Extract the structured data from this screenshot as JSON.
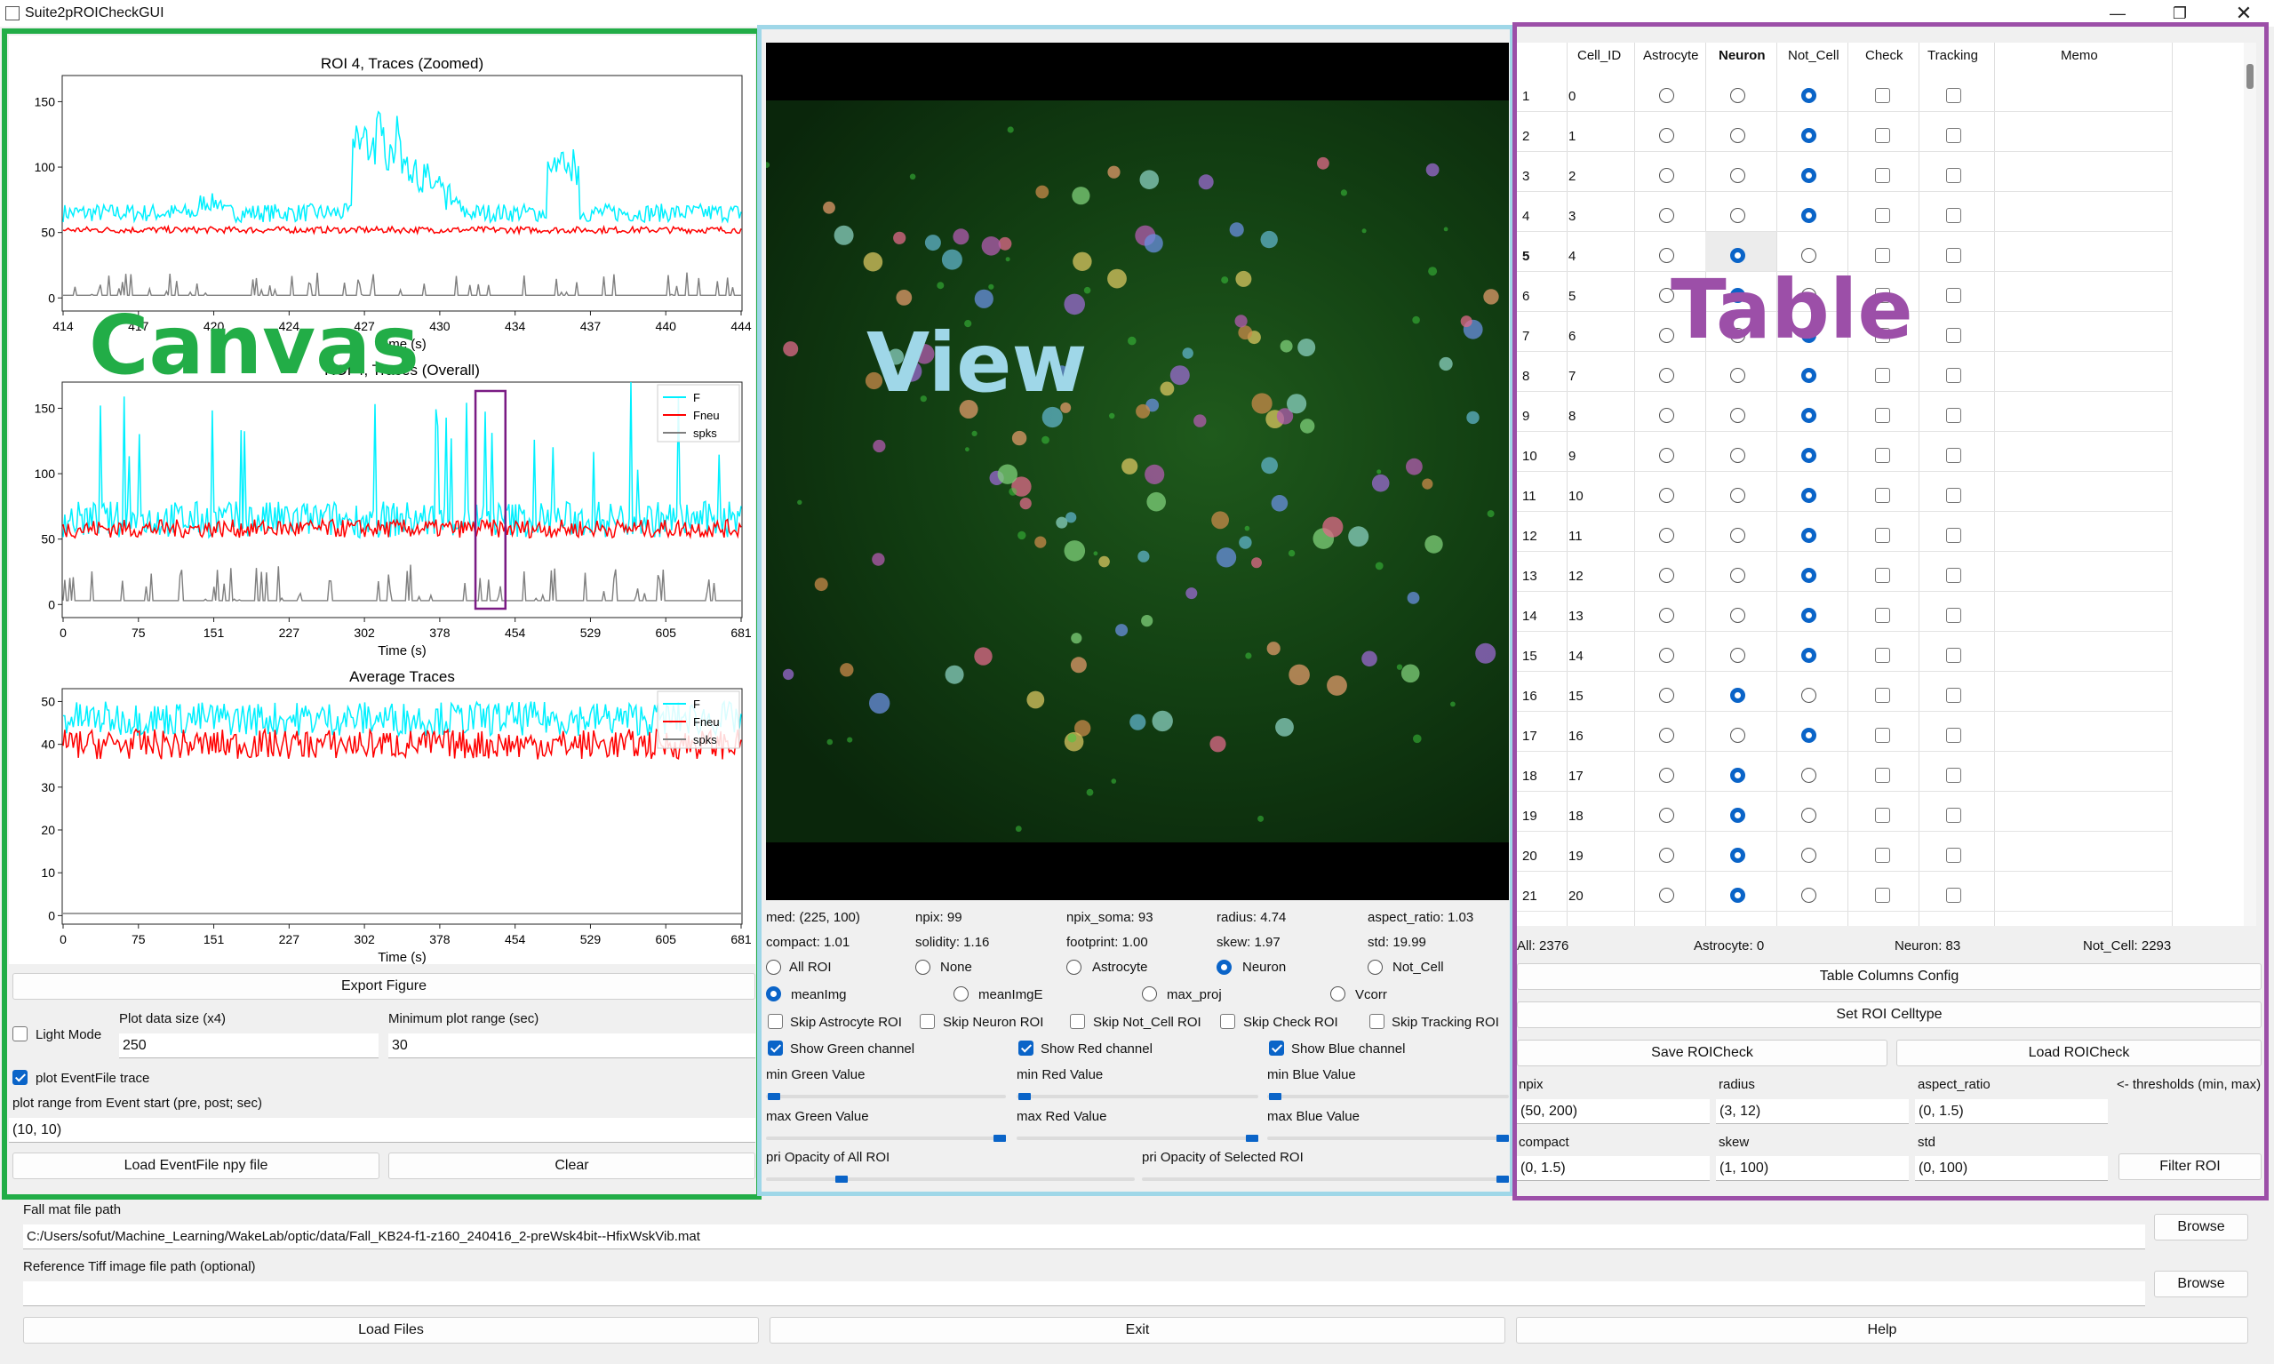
{
  "window": {
    "title": "Suite2pROICheckGUI"
  },
  "overlays": {
    "canvas": "Canvas",
    "view": "View",
    "table": "Table"
  },
  "colors": {
    "canvas_frame": "#22ad47",
    "view_frame": "#9fd7e8",
    "table_frame": "#9c4fa8",
    "accent": "#0a64c8"
  },
  "charts": {
    "zoomed": {
      "title": "ROI 4, Traces (Zoomed)",
      "xlabel": "Time (s)",
      "xticks": [
        "414",
        "417",
        "420",
        "424",
        "427",
        "430",
        "434",
        "437",
        "440",
        "444"
      ],
      "yticks": [
        "0",
        "50",
        "100",
        "150"
      ]
    },
    "overall": {
      "title": "ROI 4, Traces (Overall)",
      "xlabel": "Time (s)",
      "xticks": [
        "0",
        "75",
        "151",
        "227",
        "302",
        "378",
        "454",
        "529",
        "605",
        "681"
      ],
      "yticks": [
        "0",
        "50",
        "100",
        "150"
      ]
    },
    "average": {
      "title": "Average Traces",
      "xlabel": "Time (s)",
      "xticks": [
        "0",
        "75",
        "151",
        "227",
        "302",
        "378",
        "454",
        "529",
        "605",
        "681"
      ],
      "yticks": [
        "0",
        "10",
        "20",
        "30",
        "40",
        "50"
      ]
    },
    "legend": [
      "F",
      "Fneu",
      "spks"
    ]
  },
  "chart_data": [
    {
      "type": "line",
      "title": "ROI 4, Traces (Zoomed)",
      "xlabel": "Time (s)",
      "xlim": [
        414,
        444
      ],
      "ylim": [
        -10,
        170
      ],
      "series": [
        {
          "name": "F",
          "baseline": 65,
          "color": "#00f0ff"
        },
        {
          "name": "Fneu",
          "baseline": 52,
          "color": "#ff0000"
        },
        {
          "name": "spks",
          "baseline": 2,
          "color": "#7f7f7f"
        }
      ]
    },
    {
      "type": "line",
      "title": "ROI 4, Traces (Overall)",
      "xlabel": "Time (s)",
      "xlim": [
        0,
        681
      ],
      "ylim": [
        -10,
        170
      ],
      "series": [
        {
          "name": "F",
          "baseline": 65,
          "color": "#00f0ff"
        },
        {
          "name": "Fneu",
          "baseline": 58,
          "color": "#ff0000"
        },
        {
          "name": "spks",
          "baseline": 3,
          "color": "#7f7f7f"
        }
      ],
      "highlight_window": [
        414,
        444
      ]
    },
    {
      "type": "line",
      "title": "Average Traces",
      "xlabel": "Time (s)",
      "xlim": [
        0,
        681
      ],
      "ylim": [
        -2,
        53
      ],
      "series": [
        {
          "name": "F",
          "baseline": 46,
          "color": "#00f0ff"
        },
        {
          "name": "Fneu",
          "baseline": 40,
          "color": "#ff0000"
        },
        {
          "name": "spks",
          "baseline": 0.5,
          "color": "#7f7f7f"
        }
      ]
    }
  ],
  "canvas_controls": {
    "export": "Export Figure",
    "light_mode": "Light Mode",
    "plot_size_label": "Plot data size (x4)",
    "plot_size_value": "250",
    "min_range_label": "Minimum plot range (sec)",
    "min_range_value": "30",
    "plot_event": "plot EventFile trace",
    "event_range_label": "plot range from Event start (pre, post; sec)",
    "event_range_value": "(10, 10)",
    "load_event": "Load EventFile npy file",
    "clear": "Clear"
  },
  "view_info": {
    "row1": [
      "med: (225, 100)",
      "npix: 99",
      "npix_soma: 93",
      "radius: 4.74",
      "aspect_ratio: 1.03"
    ],
    "row2": [
      "compact: 1.01",
      "solidity: 1.16",
      "footprint: 1.00",
      "skew: 1.97",
      "std: 19.99"
    ],
    "roi_filter": [
      "All ROI",
      "None",
      "Astrocyte",
      "Neuron",
      "Not_Cell"
    ],
    "image_type": [
      "meanImg",
      "meanImgE",
      "max_proj",
      "Vcorr"
    ],
    "skip": [
      "Skip Astrocyte ROI",
      "Skip Neuron ROI",
      "Skip Not_Cell ROI",
      "Skip Check ROI",
      "Skip Tracking ROI"
    ],
    "channels": [
      "Show Green channel",
      "Show Red channel",
      "Show Blue channel"
    ],
    "min_labels": [
      "min Green Value",
      "min Red Value",
      "min Blue Value"
    ],
    "max_labels": [
      "max Green Value",
      "max Red Value",
      "max Blue Value"
    ],
    "opacity_all": "pri Opacity of All ROI",
    "opacity_sel": "pri Opacity of Selected ROI"
  },
  "table": {
    "headers": [
      "Cell_ID",
      "Astrocyte",
      "Neuron",
      "Not_Cell",
      "Check",
      "Tracking",
      "Memo"
    ],
    "rows": [
      {
        "n": "1",
        "id": "0",
        "type": "Not_Cell"
      },
      {
        "n": "2",
        "id": "1",
        "type": "Not_Cell"
      },
      {
        "n": "3",
        "id": "2",
        "type": "Not_Cell"
      },
      {
        "n": "4",
        "id": "3",
        "type": "Not_Cell"
      },
      {
        "n": "5",
        "id": "4",
        "type": "Neuron"
      },
      {
        "n": "6",
        "id": "5",
        "type": "Neuron"
      },
      {
        "n": "7",
        "id": "6",
        "type": "Not_Cell"
      },
      {
        "n": "8",
        "id": "7",
        "type": "Not_Cell"
      },
      {
        "n": "9",
        "id": "8",
        "type": "Not_Cell"
      },
      {
        "n": "10",
        "id": "9",
        "type": "Not_Cell"
      },
      {
        "n": "11",
        "id": "10",
        "type": "Not_Cell"
      },
      {
        "n": "12",
        "id": "11",
        "type": "Not_Cell"
      },
      {
        "n": "13",
        "id": "12",
        "type": "Not_Cell"
      },
      {
        "n": "14",
        "id": "13",
        "type": "Not_Cell"
      },
      {
        "n": "15",
        "id": "14",
        "type": "Not_Cell"
      },
      {
        "n": "16",
        "id": "15",
        "type": "Neuron"
      },
      {
        "n": "17",
        "id": "16",
        "type": "Not_Cell"
      },
      {
        "n": "18",
        "id": "17",
        "type": "Neuron"
      },
      {
        "n": "19",
        "id": "18",
        "type": "Neuron"
      },
      {
        "n": "20",
        "id": "19",
        "type": "Neuron"
      },
      {
        "n": "21",
        "id": "20",
        "type": "Neuron"
      }
    ],
    "summary": [
      "All: 2376",
      "Astrocyte: 0",
      "Neuron: 83",
      "Not_Cell: 2293"
    ]
  },
  "table_controls": {
    "columns_config": "Table Columns Config",
    "set_celltype": "Set ROI Celltype",
    "save": "Save ROICheck",
    "load": "Load ROICheck",
    "thresh_labels": [
      "npix",
      "radius",
      "aspect_ratio",
      "<- thresholds (min, max)"
    ],
    "thresh_values": [
      "(50, 200)",
      "(3, 12)",
      "(0, 1.5)"
    ],
    "thresh_labels2": [
      "compact",
      "skew",
      "std"
    ],
    "thresh_values2": [
      "(0, 1.5)",
      "(1, 100)",
      "(0, 100)"
    ],
    "filter": "Filter ROI"
  },
  "files": {
    "fall_label": "Fall mat file path",
    "fall_value": "C:/Users/sofut/Machine_Learning/WakeLab/optic/data/Fall_KB24-f1-z160_240416_2-preWsk4bit--HfixWskVib.mat",
    "tiff_label": "Reference Tiff image file path (optional)",
    "tiff_value": "",
    "browse": "Browse",
    "load_files": "Load Files",
    "exit": "Exit",
    "help": "Help"
  }
}
